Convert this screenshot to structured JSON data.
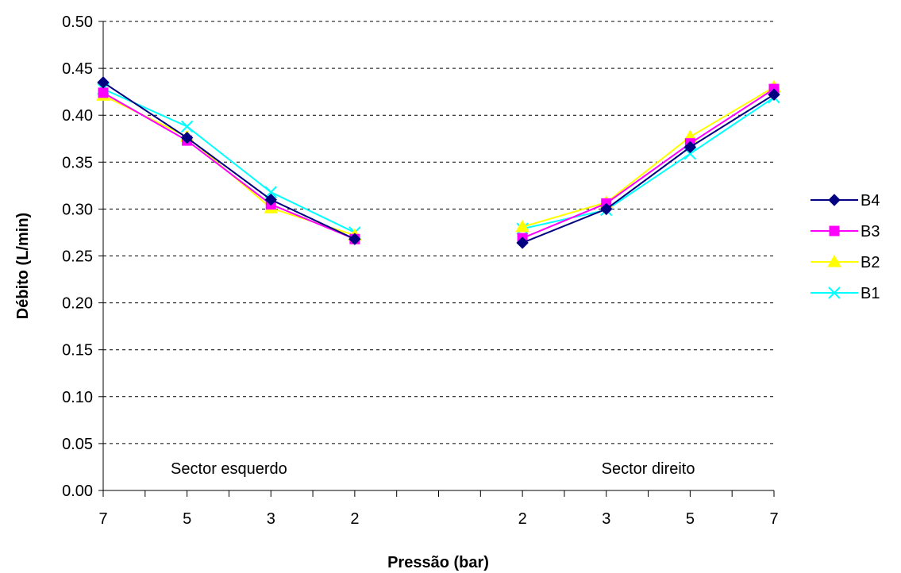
{
  "chart_data": {
    "type": "line",
    "title": "",
    "xlabel": "Pressão (bar)",
    "ylabel": "Débito (L/min)",
    "ylim": [
      0,
      0.5
    ],
    "yticks": [
      "0.00",
      "0.05",
      "0.10",
      "0.15",
      "0.20",
      "0.25",
      "0.30",
      "0.35",
      "0.40",
      "0.45",
      "0.50"
    ],
    "categories": [
      "7",
      "5",
      "3",
      "2",
      "",
      "2",
      "3",
      "5",
      "7"
    ],
    "grid": true,
    "legend_position": "right",
    "annotations": [
      {
        "text": "Sector esquerdo",
        "category_index": 1.5
      },
      {
        "text": "Sector direito",
        "category_index": 6.5
      }
    ],
    "series": [
      {
        "name": "B4",
        "color": "#000080",
        "marker": "diamond",
        "values": [
          0.435,
          0.376,
          0.31,
          0.268,
          null,
          0.264,
          0.3,
          0.366,
          0.422
        ]
      },
      {
        "name": "B3",
        "color": "#FF00FF",
        "marker": "square",
        "values": [
          0.424,
          0.373,
          0.305,
          0.268,
          null,
          0.269,
          0.306,
          0.37,
          0.428
        ]
      },
      {
        "name": "B2",
        "color": "#FFFF00",
        "marker": "triangle",
        "values": [
          0.421,
          0.377,
          0.301,
          0.272,
          null,
          0.281,
          0.307,
          0.377,
          0.43
        ]
      },
      {
        "name": "B1",
        "color": "#00FFFF",
        "marker": "x",
        "values": [
          0.428,
          0.388,
          0.318,
          0.275,
          null,
          0.279,
          0.299,
          0.359,
          0.419
        ]
      }
    ]
  }
}
